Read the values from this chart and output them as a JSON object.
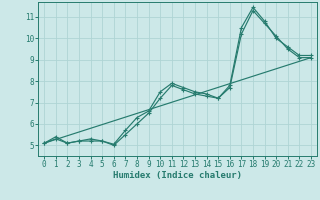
{
  "title": "",
  "xlabel": "Humidex (Indice chaleur)",
  "ylabel": "",
  "background_color": "#cce8e8",
  "grid_color": "#afd4d4",
  "line_color": "#267b6e",
  "xlim": [
    -0.5,
    23.5
  ],
  "ylim": [
    4.5,
    11.7
  ],
  "xticks": [
    0,
    1,
    2,
    3,
    4,
    5,
    6,
    7,
    8,
    9,
    10,
    11,
    12,
    13,
    14,
    15,
    16,
    17,
    18,
    19,
    20,
    21,
    22,
    23
  ],
  "yticks": [
    5,
    6,
    7,
    8,
    9,
    10,
    11
  ],
  "line1_x": [
    0,
    1,
    2,
    3,
    4,
    5,
    6,
    7,
    8,
    9,
    10,
    11,
    12,
    13,
    14,
    15,
    16,
    17,
    18,
    19,
    20,
    21,
    22,
    23
  ],
  "line1_y": [
    5.1,
    5.3,
    5.1,
    5.2,
    5.2,
    5.2,
    5.0,
    5.5,
    6.0,
    6.5,
    7.2,
    7.8,
    7.6,
    7.4,
    7.3,
    7.2,
    7.7,
    10.2,
    11.3,
    10.7,
    10.1,
    9.5,
    9.1,
    9.1
  ],
  "line2_x": [
    0,
    1,
    2,
    3,
    4,
    5,
    6,
    7,
    8,
    9,
    10,
    11,
    12,
    13,
    14,
    15,
    16,
    17,
    18,
    19,
    20,
    21,
    22,
    23
  ],
  "line2_y": [
    5.1,
    5.4,
    5.1,
    5.2,
    5.3,
    5.2,
    5.05,
    5.7,
    6.3,
    6.6,
    7.5,
    7.9,
    7.7,
    7.5,
    7.4,
    7.2,
    7.8,
    10.5,
    11.45,
    10.8,
    10.0,
    9.6,
    9.2,
    9.2
  ],
  "line3_x": [
    0,
    23
  ],
  "line3_y": [
    5.1,
    9.1
  ]
}
